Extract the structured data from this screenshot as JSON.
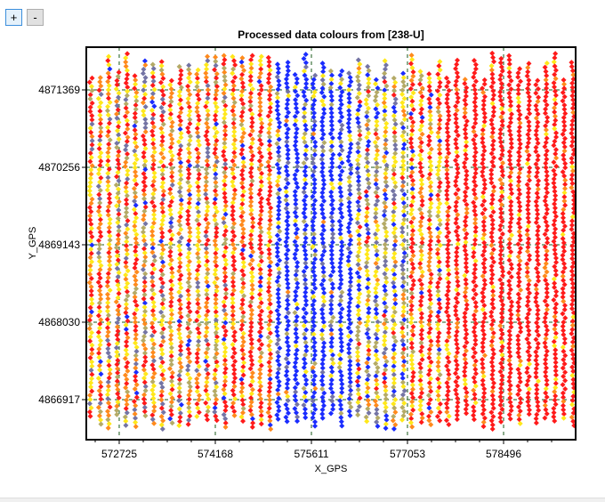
{
  "toolbar": {
    "zoom_in_label": "+",
    "zoom_out_label": "-"
  },
  "chart_data": {
    "type": "scatter",
    "title": "Processed data  colours from [238-U]",
    "xlabel": "X_GPS",
    "ylabel": "Y_GPS",
    "xlim": [
      572231,
      579578
    ],
    "ylim": [
      4866341,
      4871983
    ],
    "xticks": [
      "572725",
      "574168",
      "575611",
      "577053",
      "578496"
    ],
    "yticks": [
      "4871369",
      "4870256",
      "4869143",
      "4868030",
      "4866917"
    ],
    "grid": "dashed at major ticks",
    "legend": "none",
    "palette": {
      "red": "#ff1a1a",
      "orange": "#ff8a1c",
      "yellow": "#ffe81a",
      "olive": "#b4aa66",
      "slate": "#7474a4",
      "blue": "#1a2cff"
    },
    "survey_lines": {
      "x_first": 572300,
      "x_step": 134,
      "count": 55,
      "y_start_range": [
        4871500,
        4871900
      ],
      "y_end_range": [
        4866450,
        4866700
      ],
      "y_step": 60
    },
    "colour_zones": [
      {
        "x_range": [
          572231,
          574400
        ],
        "mix": {
          "red": 0.3,
          "orange": 0.22,
          "yellow": 0.25,
          "olive": 0.1,
          "slate": 0.1,
          "blue": 0.03
        }
      },
      {
        "x_range": [
          574400,
          575000
        ],
        "mix": {
          "red": 0.55,
          "orange": 0.25,
          "yellow": 0.12,
          "olive": 0.05,
          "blue": 0.03
        }
      },
      {
        "x_range": [
          575000,
          576300
        ],
        "mix": {
          "blue": 0.75,
          "slate": 0.08,
          "olive": 0.07,
          "yellow": 0.08,
          "orange": 0.02
        }
      },
      {
        "x_range": [
          576300,
          577000
        ],
        "mix": {
          "yellow": 0.3,
          "olive": 0.2,
          "slate": 0.15,
          "blue": 0.2,
          "orange": 0.1,
          "red": 0.05
        }
      },
      {
        "x_range": [
          577000,
          577600
        ],
        "mix": {
          "red": 0.45,
          "orange": 0.2,
          "yellow": 0.25,
          "olive": 0.05,
          "blue": 0.05
        }
      },
      {
        "x_range": [
          577600,
          579578
        ],
        "mix": {
          "red": 0.85,
          "orange": 0.1,
          "yellow": 0.05
        }
      }
    ]
  }
}
